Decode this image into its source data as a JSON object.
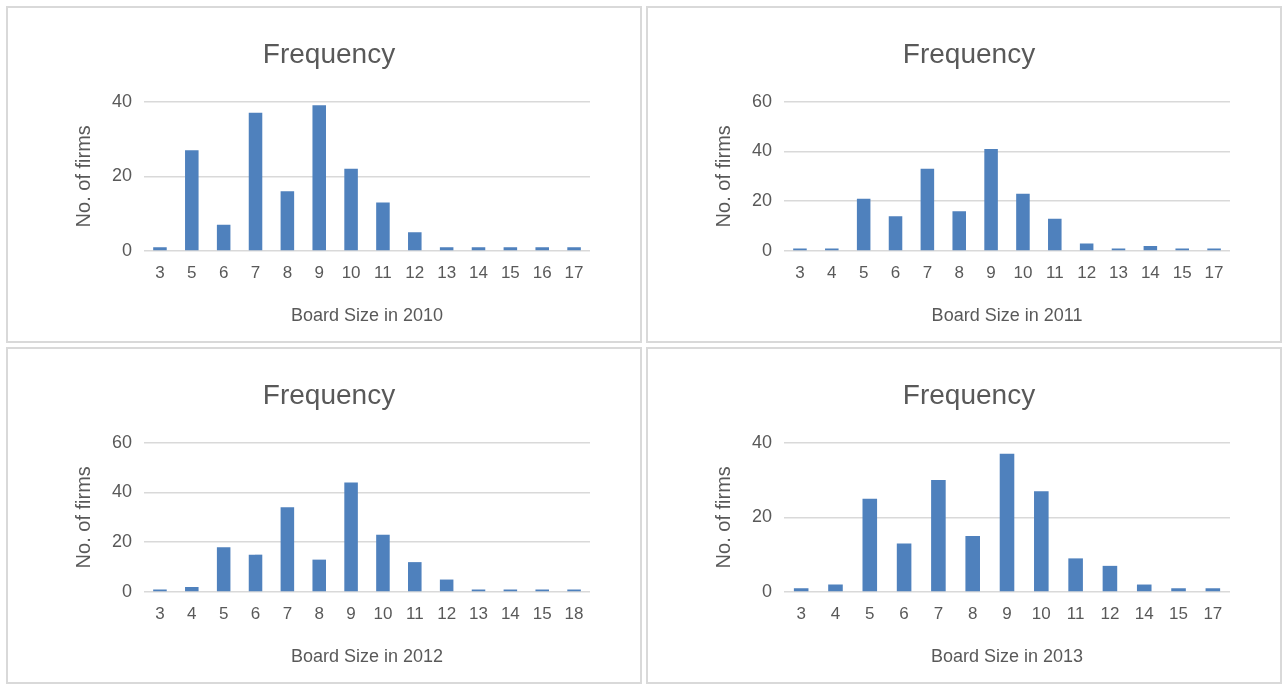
{
  "chart_data": [
    {
      "type": "bar",
      "title": "Frequency",
      "xlabel": "Board Size in 2010",
      "ylabel": "No. of firms",
      "categories": [
        "3",
        "5",
        "6",
        "7",
        "8",
        "9",
        "10",
        "11",
        "12",
        "13",
        "14",
        "15",
        "16",
        "17"
      ],
      "values": [
        1,
        27,
        7,
        37,
        16,
        39,
        22,
        13,
        5,
        1,
        1,
        1,
        1,
        1
      ],
      "color": "#4f81bd",
      "ylim": [
        0,
        40
      ],
      "yticks": [
        0,
        20,
        40
      ],
      "grid": "y",
      "legend": false
    },
    {
      "type": "bar",
      "title": "Frequency",
      "xlabel": "Board Size in 2011",
      "ylabel": "No. of firms",
      "categories": [
        "3",
        "4",
        "5",
        "6",
        "7",
        "8",
        "9",
        "10",
        "11",
        "12",
        "13",
        "14",
        "15",
        "17"
      ],
      "values": [
        1,
        1,
        21,
        14,
        33,
        16,
        41,
        23,
        13,
        3,
        1,
        2,
        1,
        1
      ],
      "color": "#4f81bd",
      "ylim": [
        0,
        60
      ],
      "yticks": [
        0,
        20,
        40,
        60
      ],
      "grid": "y",
      "legend": false
    },
    {
      "type": "bar",
      "title": "Frequency",
      "xlabel": "Board Size in 2012",
      "ylabel": "No. of firms",
      "categories": [
        "3",
        "4",
        "5",
        "6",
        "7",
        "8",
        "9",
        "10",
        "11",
        "12",
        "13",
        "14",
        "15",
        "18"
      ],
      "values": [
        1,
        2,
        18,
        15,
        34,
        13,
        44,
        23,
        12,
        5,
        1,
        1,
        1,
        1
      ],
      "color": "#4f81bd",
      "ylim": [
        0,
        60
      ],
      "yticks": [
        0,
        20,
        40,
        60
      ],
      "grid": "y",
      "legend": false
    },
    {
      "type": "bar",
      "title": "Frequency",
      "xlabel": "Board Size in 2013",
      "ylabel": "No. of firms",
      "categories": [
        "3",
        "4",
        "5",
        "6",
        "7",
        "8",
        "9",
        "10",
        "11",
        "12",
        "14",
        "15",
        "17"
      ],
      "values": [
        1,
        2,
        25,
        13,
        30,
        15,
        37,
        27,
        9,
        7,
        2,
        1,
        1
      ],
      "color": "#4f81bd",
      "ylim": [
        0,
        40
      ],
      "yticks": [
        0,
        20,
        40
      ],
      "grid": "y",
      "legend": false
    }
  ]
}
